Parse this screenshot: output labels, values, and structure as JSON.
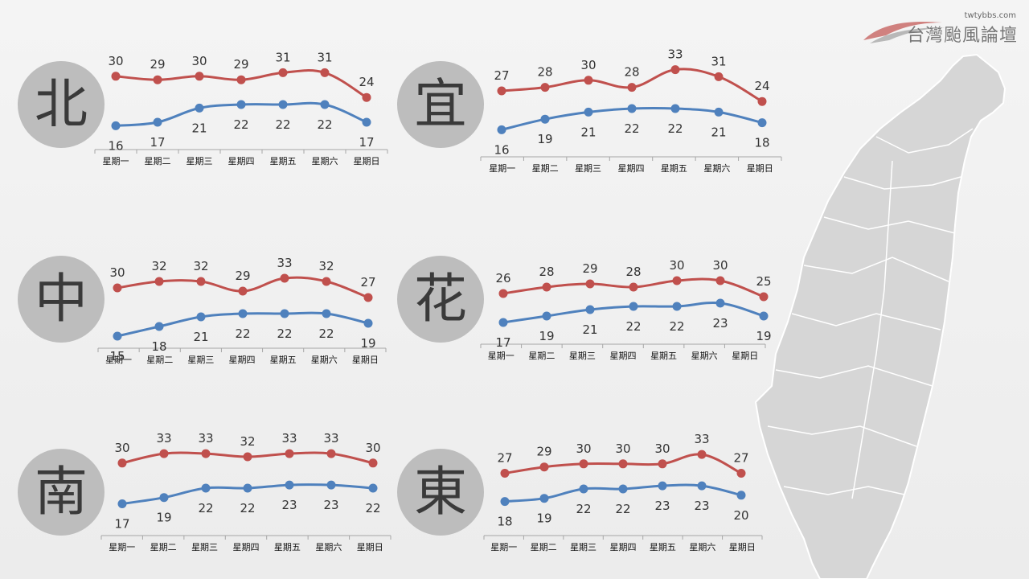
{
  "logo": {
    "site": "twtybbs.com",
    "name": "台灣颱風論壇"
  },
  "days": [
    "星期一",
    "星期二",
    "星期三",
    "星期四",
    "星期五",
    "星期六",
    "星期日"
  ],
  "colors": {
    "high": "#c0504d",
    "low": "#4f81bd",
    "badge": "#bdbdbd",
    "axis": "#a6a6a6"
  },
  "chart_data": [
    {
      "type": "line",
      "region": "北",
      "categories": [
        "星期一",
        "星期二",
        "星期三",
        "星期四",
        "星期五",
        "星期六",
        "星期日"
      ],
      "series": [
        {
          "values": [
            30,
            29,
            30,
            29,
            31,
            31,
            24
          ]
        },
        {
          "values": [
            16,
            17,
            21,
            22,
            22,
            22,
            17
          ]
        }
      ]
    },
    {
      "type": "line",
      "region": "宜",
      "categories": [
        "星期一",
        "星期二",
        "星期三",
        "星期四",
        "星期五",
        "星期六",
        "星期日"
      ],
      "series": [
        {
          "values": [
            27,
            28,
            30,
            28,
            33,
            31,
            24
          ]
        },
        {
          "values": [
            16,
            19,
            21,
            22,
            22,
            21,
            18
          ]
        }
      ]
    },
    {
      "type": "line",
      "region": "中",
      "categories": [
        "星期一",
        "星期二",
        "星期三",
        "星期四",
        "星期五",
        "星期六",
        "星期日"
      ],
      "series": [
        {
          "values": [
            30,
            32,
            32,
            29,
            33,
            32,
            27
          ]
        },
        {
          "values": [
            15,
            18,
            21,
            22,
            22,
            22,
            19
          ]
        }
      ]
    },
    {
      "type": "line",
      "region": "花",
      "categories": [
        "星期一",
        "星期二",
        "星期三",
        "星期四",
        "星期五",
        "星期六",
        "星期日"
      ],
      "series": [
        {
          "values": [
            26,
            28,
            29,
            28,
            30,
            30,
            25
          ]
        },
        {
          "values": [
            17,
            19,
            21,
            22,
            22,
            23,
            19
          ]
        }
      ]
    },
    {
      "type": "line",
      "region": "南",
      "categories": [
        "星期一",
        "星期二",
        "星期三",
        "星期四",
        "星期五",
        "星期六",
        "星期日"
      ],
      "series": [
        {
          "values": [
            30,
            33,
            33,
            32,
            33,
            33,
            30
          ]
        },
        {
          "values": [
            17,
            19,
            22,
            22,
            23,
            23,
            22
          ]
        }
      ]
    },
    {
      "type": "line",
      "region": "東",
      "categories": [
        "星期一",
        "星期二",
        "星期三",
        "星期四",
        "星期五",
        "星期六",
        "星期日"
      ],
      "series": [
        {
          "values": [
            27,
            29,
            30,
            30,
            30,
            33,
            27
          ]
        },
        {
          "values": [
            18,
            19,
            22,
            22,
            23,
            23,
            20
          ]
        }
      ]
    }
  ]
}
